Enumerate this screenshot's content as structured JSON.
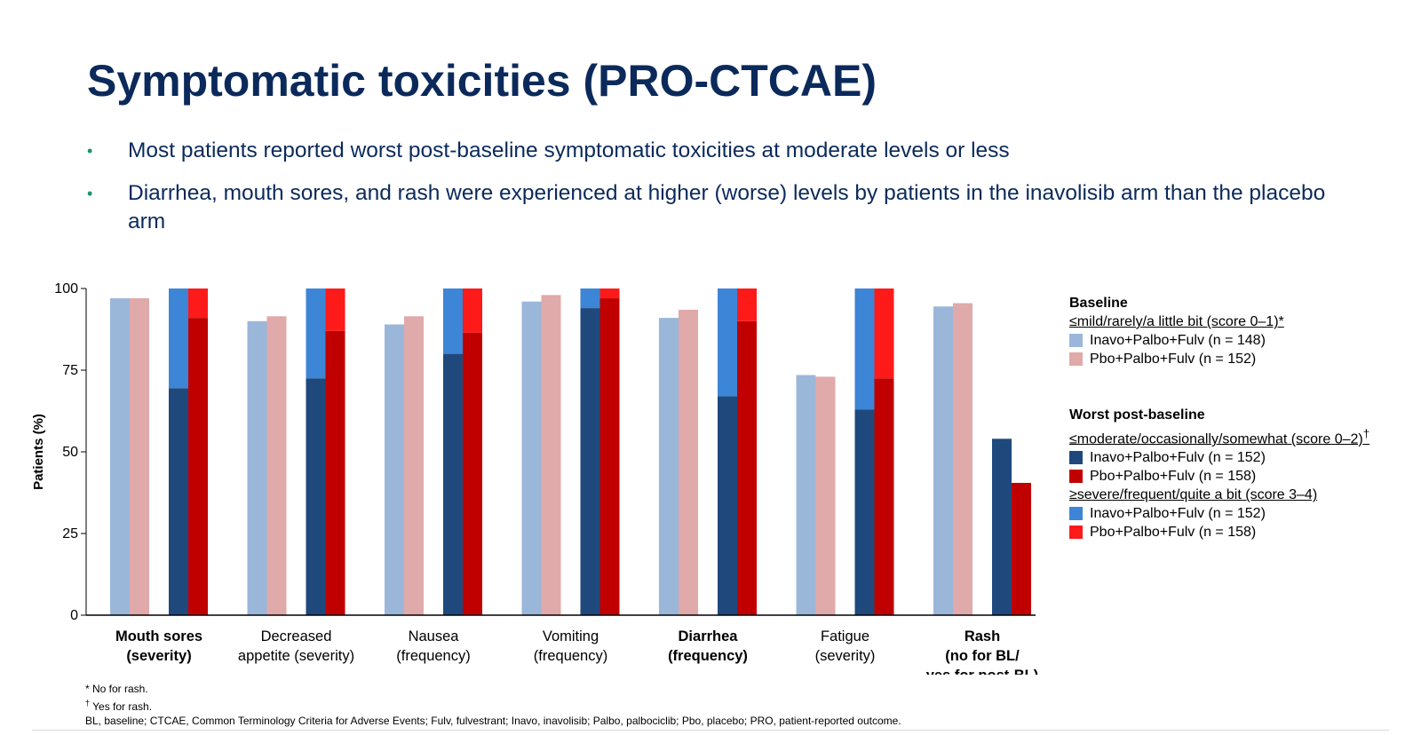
{
  "slide": {
    "title": "Symptomatic toxicities (PRO-CTCAE)",
    "bullets": [
      "Most patients reported worst post-baseline symptomatic toxicities at moderate levels or less",
      "Diarrhea, mouth sores, and rash were experienced at higher (worse) levels by patients in the inavolisib arm than the placebo arm"
    ],
    "bullet_glyph": "•"
  },
  "legend": {
    "baseline_title": "Baseline",
    "baseline_sub": "≤mild/rarely/a little bit (score 0–1)*",
    "baseline_items": [
      {
        "label": "Inavo+Palbo+Fulv (n = 148)",
        "color": "#9ab7da"
      },
      {
        "label": "Pbo+Palbo+Fulv (n = 152)",
        "color": "#e0a9aa"
      }
    ],
    "worst_title": "Worst post-baseline",
    "worst_sub1": "≤moderate/occasionally/somewhat (score 0–2)",
    "worst_sub1_mark": "†",
    "worst_items1": [
      {
        "label": "Inavo+Palbo+Fulv (n = 152)",
        "color": "#1f497d"
      },
      {
        "label": "Pbo+Palbo+Fulv (n = 158)",
        "color": "#c00000"
      }
    ],
    "worst_sub2": "≥severe/frequent/quite a bit (score 3–4)",
    "worst_items2": [
      {
        "label": "Inavo+Palbo+Fulv (n = 152)",
        "color": "#3d85d6"
      },
      {
        "label": "Pbo+Palbo+Fulv (n = 158)",
        "color": "#ff1a1a"
      }
    ]
  },
  "footnotes": {
    "line1": "* No for rash.",
    "line2_mark": "†",
    "line2": " Yes for rash.",
    "line3": "BL, baseline; CTCAE, Common Terminology Criteria for Adverse Events; Fulv, fulvestrant;  Inavo, inavolisib; Palbo, palbociclib; Pbo, placebo; PRO, patient-reported outcome."
  },
  "chart_data": {
    "type": "bar",
    "ylabel": "Patients (%)",
    "ylim": [
      0,
      100
    ],
    "yticks": [
      0,
      25,
      50,
      75,
      100
    ],
    "categories": [
      {
        "lines": [
          "Mouth sores",
          "(severity)"
        ],
        "bold": true
      },
      {
        "lines": [
          "Decreased",
          "appetite (severity)"
        ],
        "bold": false
      },
      {
        "lines": [
          "Nausea",
          "(frequency)"
        ],
        "bold": false
      },
      {
        "lines": [
          "Vomiting",
          "(frequency)"
        ],
        "bold": false
      },
      {
        "lines": [
          "Diarrhea",
          "(frequency)"
        ],
        "bold": true
      },
      {
        "lines": [
          "Fatigue",
          "(severity)"
        ],
        "bold": false
      },
      {
        "lines": [
          "Rash",
          "(no for BL/",
          "yes for post-BL)"
        ],
        "bold": true
      }
    ],
    "series": [
      {
        "name": "Baseline Inavo+Palbo+Fulv (n = 148)",
        "values": [
          97,
          90,
          89,
          96,
          91,
          73.5,
          94.5
        ]
      },
      {
        "name": "Baseline Pbo+Palbo+Fulv (n = 152)",
        "values": [
          97,
          91.5,
          91.5,
          98,
          93.5,
          73,
          95.5
        ]
      },
      {
        "name": "Worst post-baseline ≤moderate Inavo+Palbo+Fulv (n = 152)",
        "values": [
          69.5,
          72.5,
          80,
          94,
          67,
          63,
          54
        ]
      },
      {
        "name": "Worst post-baseline ≥severe Inavo+Palbo+Fulv (n = 152)",
        "values": [
          30.5,
          27.5,
          20,
          6,
          33,
          37,
          null
        ]
      },
      {
        "name": "Worst post-baseline ≤moderate Pbo+Palbo+Fulv (n = 158)",
        "values": [
          91,
          87,
          86.5,
          97,
          90,
          72.5,
          40.5
        ]
      },
      {
        "name": "Worst post-baseline ≥severe Pbo+Palbo+Fulv (n = 158)",
        "values": [
          9,
          13,
          13.5,
          3,
          10,
          27.5,
          null
        ]
      }
    ],
    "colors": {
      "baseline_inavo": "#9ab7da",
      "baseline_pbo": "#e0a9aa",
      "worst_mod_inavo": "#1f497d",
      "worst_mod_pbo": "#c00000",
      "worst_sev_inavo": "#3d85d6",
      "worst_sev_pbo": "#ff1a1a"
    },
    "grid": false,
    "legend_position": "right"
  }
}
